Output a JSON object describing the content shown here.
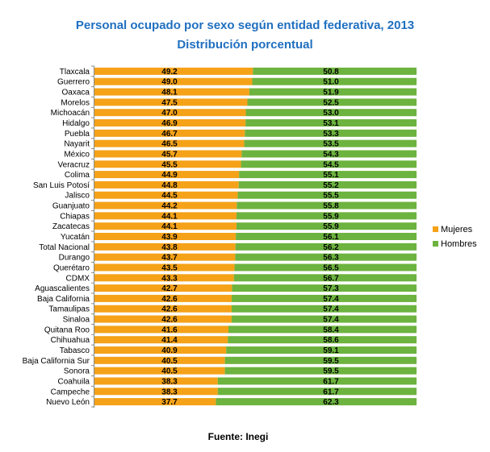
{
  "title": "Personal ocupado por sexo según entidad federativa, 2013",
  "subtitle": "Distribución porcentual",
  "source": "Fuente: Inegi",
  "colors": {
    "mujeres": "#f5a219",
    "hombres": "#6db33f",
    "axis": "#8a8a8a"
  },
  "chart_data": {
    "type": "bar",
    "orientation": "horizontal",
    "stacked": "percent",
    "xlim": [
      0,
      100
    ],
    "grid": false,
    "legend_position": "right",
    "categories": [
      "Tlaxcala",
      "Guerrero",
      "Oaxaca",
      "Morelos",
      "Michoacán",
      "Hidalgo",
      "Puebla",
      "Nayarit",
      "México",
      "Veracruz",
      "Colima",
      "San Luis Potosí",
      "Jalisco",
      "Guanjuato",
      "Chiapas",
      "Zacatecas",
      "Yucatán",
      "Total Nacional",
      "Durango",
      "Querétaro",
      "CDMX",
      "Aguascalientes",
      "Baja California",
      "Tamaulipas",
      "Sinaloa",
      "Quitana Roo",
      "Chihuahua",
      "Tabasco",
      "Baja California Sur",
      "Sonora",
      "Coahuila",
      "Campeche",
      "Nuevo León"
    ],
    "series": [
      {
        "name": "Mujeres",
        "values": [
          "49.2",
          "49.0",
          "48.1",
          "47.5",
          "47.0",
          "46.9",
          "46.7",
          "46.5",
          "45.7",
          "45.5",
          "44.9",
          "44.8",
          "44.5",
          "44.2",
          "44.1",
          "44.1",
          "43.9",
          "43.8",
          "43.7",
          "43.5",
          "43.3",
          "42.7",
          "42.6",
          "42.6",
          "42.6",
          "41.6",
          "41.4",
          "40.9",
          "40.5",
          "40.5",
          "38.3",
          "38.3",
          "37.7"
        ]
      },
      {
        "name": "Hombres",
        "values": [
          "50.8",
          "51.0",
          "51.9",
          "52.5",
          "53.0",
          "53.1",
          "53.3",
          "53.5",
          "54.3",
          "54.5",
          "55.1",
          "55.2",
          "55.5",
          "55.8",
          "55.9",
          "55.9",
          "56.1",
          "56.2",
          "56.3",
          "56.5",
          "56.7",
          "57.3",
          "57.4",
          "57.4",
          "57.4",
          "58.4",
          "58.6",
          "59.1",
          "59.5",
          "59.5",
          "61.7",
          "61.7",
          "62.3"
        ]
      }
    ]
  }
}
